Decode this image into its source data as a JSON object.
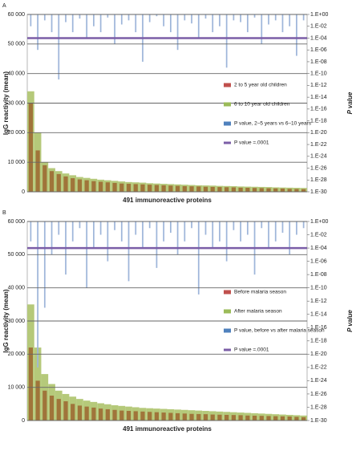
{
  "chart_data": [
    {
      "type": "bar",
      "panel_label": "A",
      "x_label": "491 immunoreactive proteins",
      "y_label": "IgG reactivity (mean)",
      "y2_label": "P value",
      "ylim": [
        0,
        60000
      ],
      "yticks": [
        0,
        {
          "value": 10000,
          "label": "10 000"
        },
        {
          "value": 20000,
          "label": "20 000"
        },
        {
          "value": 30000,
          "label": "30 000"
        },
        {
          "value": 40000,
          "label": "40 000"
        },
        {
          "value": 50000,
          "label": "50 000"
        },
        {
          "value": 60000,
          "label": "60 000"
        }
      ],
      "y2lim": [
        1e-30,
        1
      ],
      "y2_log": true,
      "y2ticks": [
        {
          "value": 1,
          "label": "1.E+00"
        },
        {
          "value": 0.01,
          "label": "1.E-02"
        },
        {
          "value": 0.0001,
          "label": "1.E-04"
        },
        {
          "value": 1e-06,
          "label": "1.E-06"
        },
        {
          "value": 1e-08,
          "label": "1.E-08"
        },
        {
          "value": 1e-10,
          "label": "1.E-10"
        },
        {
          "value": 1e-12,
          "label": "1.E-12"
        },
        {
          "value": 1e-14,
          "label": "1.E-14"
        },
        {
          "value": 1e-16,
          "label": "1.E-16"
        },
        {
          "value": 1e-18,
          "label": "1.E-18"
        },
        {
          "value": 1e-20,
          "label": "1.E-20"
        },
        {
          "value": 1e-22,
          "label": "1.E-22"
        },
        {
          "value": 1e-24,
          "label": "1.E-24"
        },
        {
          "value": 1e-26,
          "label": "1.E-26"
        },
        {
          "value": 1e-28,
          "label": "1.E-28"
        },
        {
          "value": 1e-30,
          "label": "1.E-30"
        }
      ],
      "grid": true,
      "legend": "right",
      "series": [
        {
          "name": "6 to 10 year old children",
          "color": "#b5c97a",
          "values": [
            34000,
            20000,
            10000,
            8000,
            7000,
            6200,
            5600,
            5000,
            4700,
            4400,
            4100,
            3900,
            3700,
            3500,
            3300,
            3200,
            3100,
            2900,
            2800,
            2700,
            2600,
            2500,
            2400,
            2300,
            2200,
            2150,
            2100,
            2000,
            1950,
            1900,
            1800,
            1750,
            1700,
            1650,
            1600,
            1500,
            1450,
            1400,
            1350,
            1300
          ]
        },
        {
          "name": "2 to 5 year old children",
          "color": "#a0743a",
          "values": [
            30000,
            14000,
            9000,
            7000,
            6000,
            5200,
            4600,
            4200,
            3900,
            3600,
            3400,
            3200,
            3000,
            2800,
            2700,
            2600,
            2500,
            2400,
            2300,
            2200,
            2100,
            2000,
            1900,
            1850,
            1800,
            1700,
            1650,
            1600,
            1550,
            1500,
            1400,
            1350,
            1300,
            1250,
            1200,
            1150,
            1100,
            1000,
            950,
            900
          ]
        },
        {
          "name": "P value, 2–5 years vs 6–10 years",
          "color": "#9fb6da",
          "axis": "y2",
          "values": [
            0.01,
            1e-06,
            0.1,
            0.001,
            1e-11,
            0.05,
            0.001,
            0.2,
            0.0001,
            0.01,
            0.001,
            0.3,
            1e-05,
            0.02,
            0.1,
            0.001,
            1e-08,
            0.05,
            0.5,
            0.01,
            0.001,
            1e-06,
            0.1,
            0.03,
            0.0001,
            0.2,
            0.001,
            0.01,
            1e-09,
            0.1,
            0.05,
            0.001,
            0.3,
            1e-05,
            0.02,
            0.1,
            0.001,
            0.01,
            1e-07,
            0.1
          ]
        }
      ],
      "legend_colors": [
        "#c0504d",
        "#9bbb59",
        "#4f81bd"
      ],
      "threshold": {
        "name": "P value =.0001",
        "value": 0.0001,
        "axis": "y2",
        "color": "#7b5ea7"
      }
    },
    {
      "type": "bar",
      "panel_label": "B",
      "x_label": "491 immunoreactive proteins",
      "y_label": "IgG reactivity (mean)",
      "y2_label": "P value",
      "ylim": [
        0,
        60000
      ],
      "yticks": [
        0,
        {
          "value": 10000,
          "label": "10 000"
        },
        {
          "value": 20000,
          "label": "20 000"
        },
        {
          "value": 30000,
          "label": "30 000"
        },
        {
          "value": 40000,
          "label": "40 000"
        },
        {
          "value": 50000,
          "label": "50 000"
        },
        {
          "value": 60000,
          "label": "60 000"
        }
      ],
      "y2lim": [
        1e-30,
        1
      ],
      "y2_log": true,
      "y2ticks": [
        {
          "value": 1,
          "label": "1.E+00"
        },
        {
          "value": 0.01,
          "label": "1.E-02"
        },
        {
          "value": 0.0001,
          "label": "1.E-04"
        },
        {
          "value": 1e-06,
          "label": "1.E-06"
        },
        {
          "value": 1e-08,
          "label": "1.E-08"
        },
        {
          "value": 1e-10,
          "label": "1.E-10"
        },
        {
          "value": 1e-12,
          "label": "1.E-12"
        },
        {
          "value": 1e-14,
          "label": "1.E-14"
        },
        {
          "value": 1e-16,
          "label": "1.E-16"
        },
        {
          "value": 1e-18,
          "label": "1.E-18"
        },
        {
          "value": 1e-20,
          "label": "1.E-20"
        },
        {
          "value": 1e-22,
          "label": "1.E-22"
        },
        {
          "value": 1e-24,
          "label": "1.E-24"
        },
        {
          "value": 1e-26,
          "label": "1.E-26"
        },
        {
          "value": 1e-28,
          "label": "1.E-28"
        },
        {
          "value": 1e-30,
          "label": "1.E-30"
        }
      ],
      "grid": true,
      "legend": "right",
      "series": [
        {
          "name": "After malaria season",
          "color": "#b5c97a",
          "values": [
            35000,
            22000,
            14000,
            11000,
            9000,
            8000,
            7200,
            6500,
            6000,
            5600,
            5200,
            4900,
            4600,
            4400,
            4200,
            4000,
            3800,
            3700,
            3600,
            3500,
            3400,
            3300,
            3200,
            3100,
            3000,
            2900,
            2800,
            2700,
            2600,
            2500,
            2400,
            2300,
            2200,
            2100,
            2000,
            1900,
            1800,
            1700,
            1600,
            1500
          ]
        },
        {
          "name": "Before malaria season",
          "color": "#a0743a",
          "values": [
            22000,
            12000,
            9000,
            7500,
            6500,
            5800,
            5000,
            4500,
            4200,
            3900,
            3600,
            3400,
            3200,
            3000,
            2900,
            2800,
            2700,
            2600,
            2500,
            2400,
            2300,
            2200,
            2100,
            2000,
            1950,
            1900,
            1800,
            1750,
            1700,
            1650,
            1600,
            1500,
            1450,
            1400,
            1350,
            1300,
            1250,
            1200,
            1100,
            1000
          ]
        },
        {
          "name": "P value, before vs after malaria season",
          "color": "#9fb6da",
          "axis": "y2",
          "values": [
            0.001,
            1e-22,
            1e-13,
            1e-05,
            0.01,
            1e-08,
            0.001,
            0.1,
            1e-10,
            0.0001,
            0.01,
            1e-06,
            0.05,
            0.001,
            1e-09,
            0.01,
            0.0001,
            0.1,
            1e-07,
            0.001,
            0.02,
            1e-05,
            0.001,
            0.1,
            1e-11,
            0.01,
            0.0001,
            0.001,
            1e-06,
            0.05,
            0.001,
            0.01,
            1e-08,
            0.1,
            0.0001,
            0.001,
            0.02,
            1e-05,
            0.01,
            0.1
          ]
        }
      ],
      "legend_colors": [
        "#c0504d",
        "#9bbb59",
        "#4f81bd"
      ],
      "threshold": {
        "name": "P value =.0001",
        "value": 0.0001,
        "axis": "y2",
        "color": "#7b5ea7"
      }
    }
  ]
}
